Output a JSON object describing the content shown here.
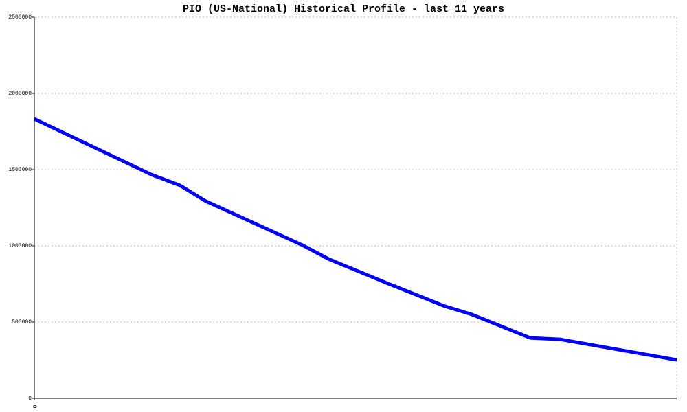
{
  "chart_data": {
    "type": "line",
    "title": "PIO (US-National) Historical Profile - last 11 years",
    "x": [
      0,
      18.2,
      22.7,
      26.7,
      41.7,
      46.0,
      55.1,
      59.4,
      63.9,
      68.1,
      77.2,
      81.8,
      100
    ],
    "series": [
      {
        "color": "#0000ff",
        "values": [
          1833000,
          1468000,
          1396000,
          1293000,
          1005000,
          910000,
          752000,
          680000,
          604000,
          550000,
          396000,
          387000,
          252000
        ]
      }
    ],
    "xlim": [
      0,
      100
    ],
    "xticks": [
      0
    ],
    "ylim": [
      0,
      2500000
    ],
    "yticks": [
      0,
      500000,
      1000000,
      1500000,
      2000000,
      2500000
    ],
    "grid": true
  }
}
